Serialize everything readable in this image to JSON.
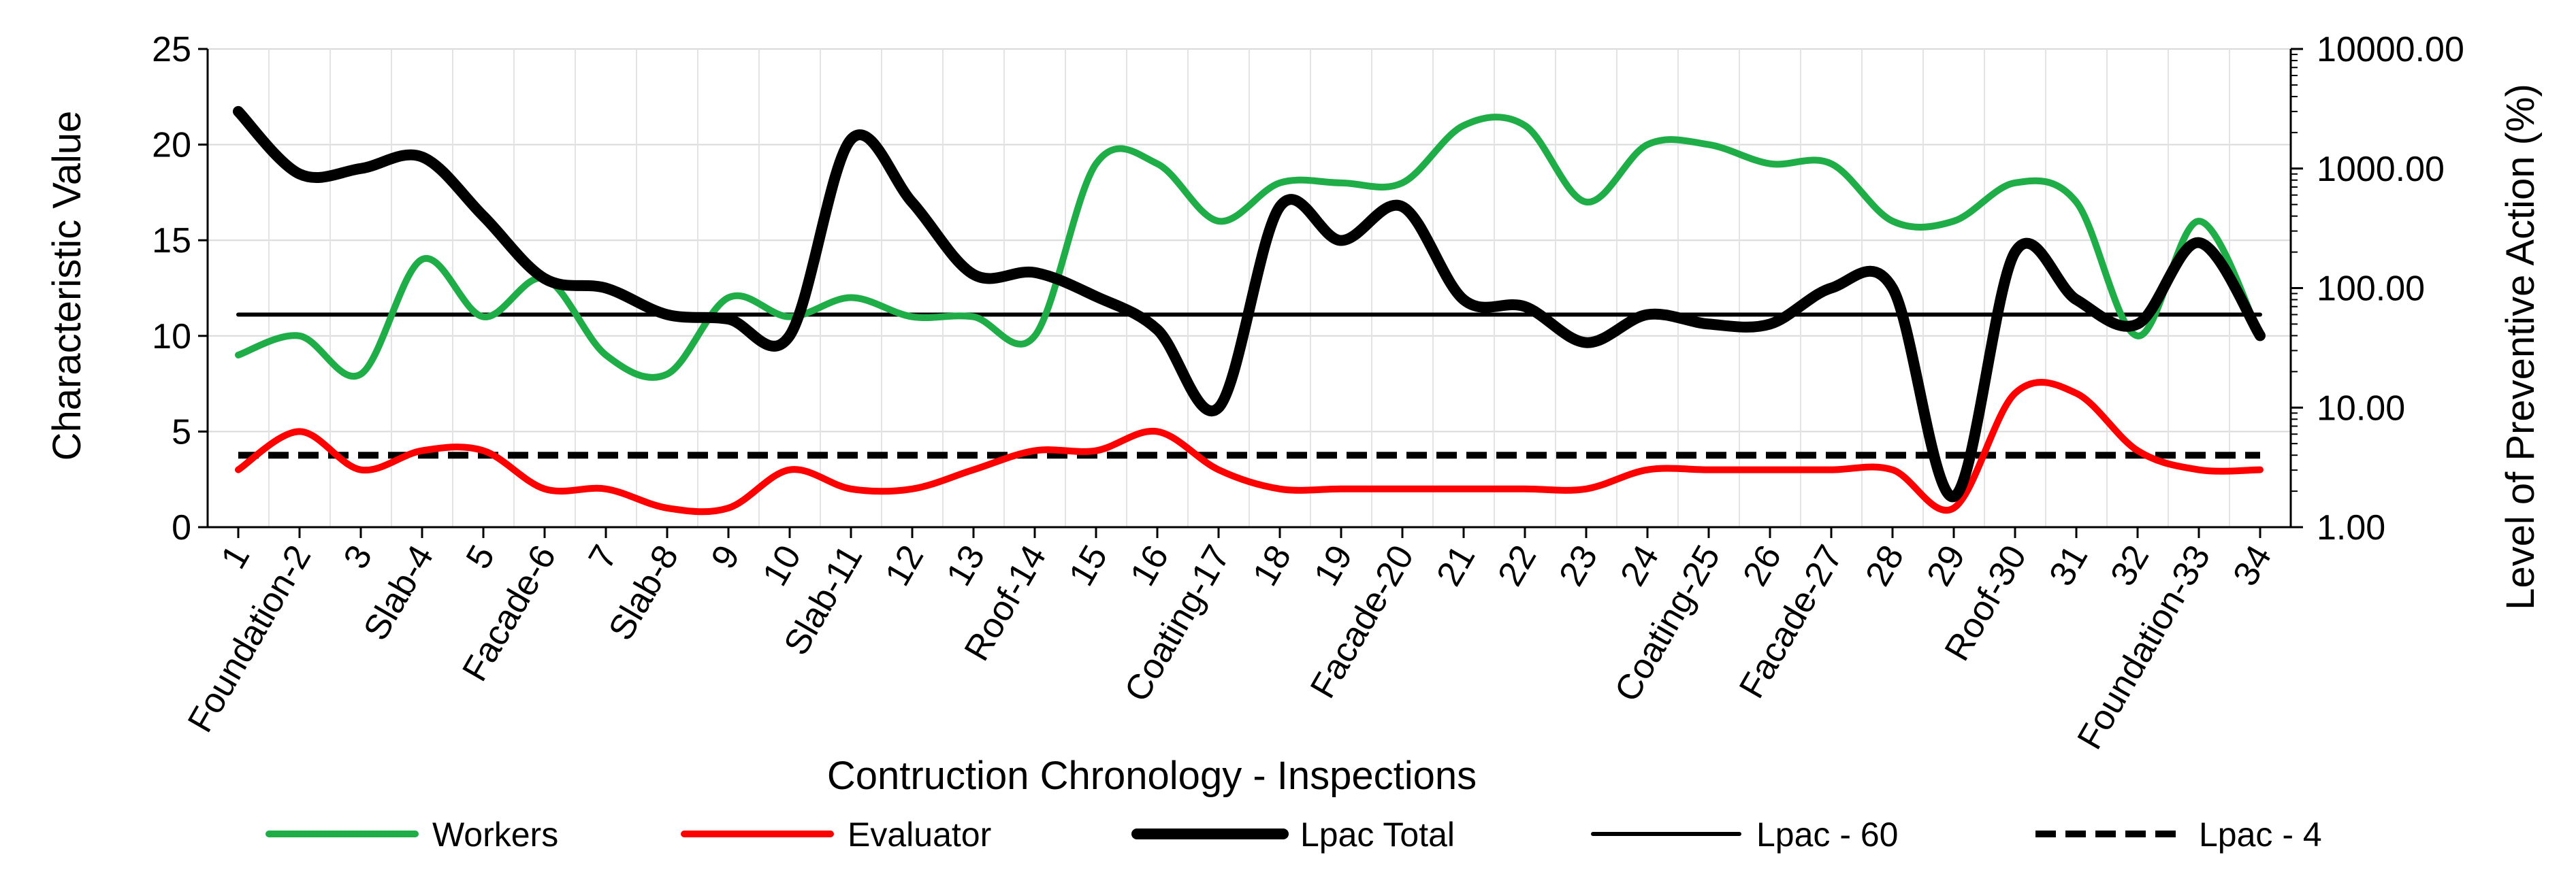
{
  "chart_data": {
    "type": "line",
    "xlabel": "Contruction Chronology - Inspections",
    "ylabel_left": "Characteristic Value",
    "ylabel_right": "Level of Preventive Action (%)",
    "ylim_left": [
      0,
      25
    ],
    "yticks_left": [
      "0",
      "5",
      "10",
      "15",
      "20",
      "25"
    ],
    "ylim_right": [
      1,
      10000
    ],
    "yscale_right": "log",
    "yticks_right": [
      "1.00",
      "10.00",
      "100.00",
      "1000.00",
      "10000.00"
    ],
    "grid": true,
    "categories": [
      "1",
      "Foundation-2",
      "3",
      "Slab-4",
      "5",
      "Facade-6",
      "7",
      "Slab-8",
      "9",
      "10",
      "Slab-11",
      "12",
      "13",
      "Roof-14",
      "15",
      "16",
      "Coating-17",
      "18",
      "19",
      "Facade-20",
      "21",
      "22",
      "23",
      "24",
      "Coating-25",
      "26",
      "Facade-27",
      "28",
      "29",
      "Roof-30",
      "31",
      "32",
      "Foundation-33",
      "34"
    ],
    "series": [
      {
        "name": "Workers",
        "axis": "left",
        "color": "#1fad48",
        "style": "smooth",
        "values": [
          9,
          10,
          8,
          14,
          11,
          13,
          9,
          8,
          12,
          11,
          12,
          11,
          11,
          10,
          19,
          19,
          16,
          18,
          18,
          18,
          21,
          21,
          17,
          20,
          20,
          19,
          19,
          16,
          16,
          18,
          17,
          10,
          16,
          10
        ]
      },
      {
        "name": "Evaluator",
        "axis": "left",
        "color": "#ff0000",
        "style": "smooth",
        "values": [
          3,
          5,
          3,
          4,
          4,
          2,
          2,
          1,
          1,
          3,
          2,
          2,
          3,
          4,
          4,
          5,
          3,
          2,
          2,
          2,
          2,
          2,
          2,
          3,
          3,
          3,
          3,
          3,
          1,
          7,
          7,
          4,
          3,
          3
        ]
      },
      {
        "name": "Lpac Total",
        "axis": "right",
        "color": "#000000",
        "style": "smooth-thick",
        "values": [
          3000,
          900,
          1000,
          1250,
          400,
          120,
          100,
          60,
          55,
          40,
          1750,
          520,
          130,
          135,
          85,
          45,
          10,
          480,
          250,
          480,
          80,
          70,
          35,
          60,
          50,
          50,
          100,
          100,
          1.8,
          200,
          80,
          50,
          240,
          40
        ]
      },
      {
        "name": "Lpac - 60",
        "axis": "right",
        "color": "#000000",
        "style": "solid-thin",
        "values": [
          60,
          60,
          60,
          60,
          60,
          60,
          60,
          60,
          60,
          60,
          60,
          60,
          60,
          60,
          60,
          60,
          60,
          60,
          60,
          60,
          60,
          60,
          60,
          60,
          60,
          60,
          60,
          60,
          60,
          60,
          60,
          60,
          60,
          60
        ]
      },
      {
        "name": "Lpac - 4",
        "axis": "right",
        "color": "#000000",
        "style": "dashed",
        "values": [
          4,
          4,
          4,
          4,
          4,
          4,
          4,
          4,
          4,
          4,
          4,
          4,
          4,
          4,
          4,
          4,
          4,
          4,
          4,
          4,
          4,
          4,
          4,
          4,
          4,
          4,
          4,
          4,
          4,
          4,
          4,
          4,
          4,
          4
        ]
      }
    ],
    "legend": [
      "Workers",
      "Evaluator",
      "Lpac Total",
      "Lpac - 60",
      "Lpac - 4"
    ],
    "legend_position": "bottom"
  }
}
